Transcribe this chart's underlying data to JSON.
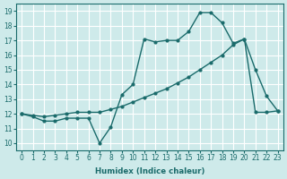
{
  "xlabel": "Humidex (Indice chaleur)",
  "ylabel": "",
  "bg_color": "#ceeaea",
  "line_color": "#1a6b6b",
  "grid_color": "#ffffff",
  "xlim": [
    -0.5,
    23.5
  ],
  "ylim": [
    9.5,
    19.5
  ],
  "yticks": [
    10,
    11,
    12,
    13,
    14,
    15,
    16,
    17,
    18,
    19
  ],
  "xticks": [
    0,
    1,
    2,
    3,
    4,
    5,
    6,
    7,
    8,
    9,
    10,
    11,
    12,
    13,
    14,
    15,
    16,
    17,
    18,
    19,
    20,
    21,
    22,
    23
  ],
  "series1_x": [
    0,
    1,
    2,
    3,
    4,
    5,
    6,
    7,
    8,
    9,
    10,
    11,
    12,
    13,
    14,
    15,
    16,
    17,
    18,
    19,
    20,
    21,
    22,
    23
  ],
  "series1_y": [
    12.0,
    11.8,
    11.5,
    11.5,
    11.7,
    11.7,
    11.7,
    10.0,
    11.1,
    13.3,
    14.0,
    17.1,
    16.9,
    17.0,
    17.0,
    17.6,
    18.9,
    18.9,
    18.2,
    16.8,
    17.1,
    15.0,
    13.2,
    12.2
  ],
  "series2_x": [
    0,
    1,
    2,
    3,
    4,
    5,
    6,
    7,
    8,
    9,
    10,
    11,
    12,
    13,
    14,
    15,
    16,
    17,
    18,
    19,
    20,
    21,
    22,
    23
  ],
  "series2_y": [
    12.0,
    11.9,
    11.8,
    11.9,
    12.0,
    12.1,
    12.1,
    12.1,
    12.3,
    12.5,
    12.8,
    13.1,
    13.4,
    13.7,
    14.1,
    14.5,
    15.0,
    15.5,
    16.0,
    16.7,
    17.1,
    12.1,
    12.1,
    12.2
  ]
}
